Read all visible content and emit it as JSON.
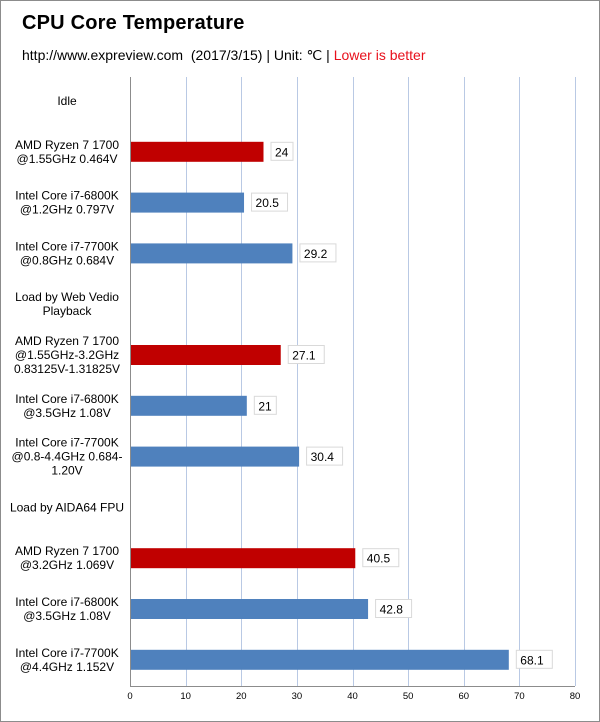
{
  "chart_data": {
    "type": "bar",
    "orientation": "horizontal",
    "title": "CPU Core Temperature",
    "subtitle": {
      "source": "http://www.expreview.com  (2017/3/15) | Unit: ℃ | ",
      "note": "Lower is better"
    },
    "xlabel": "",
    "ylabel": "",
    "xlim": [
      0,
      80
    ],
    "xticks": [
      0,
      10,
      20,
      30,
      40,
      50,
      60,
      70,
      80
    ],
    "grid": true,
    "legend": "none",
    "colors": {
      "amd": "#c00000",
      "intel": "#4f81bd",
      "grid": "#b9c9e4",
      "axis": "#8c8c8c",
      "highlight_text": "#e8101c"
    },
    "rows": [
      {
        "label": [
          "Idle"
        ],
        "header": true
      },
      {
        "label": [
          "AMD Ryzen 7 1700",
          "@1.55GHz 0.464V"
        ],
        "value": 24,
        "value_label": "24",
        "brand": "amd"
      },
      {
        "label": [
          "Intel Core i7-6800K",
          "@1.2GHz 0.797V"
        ],
        "value": 20.5,
        "value_label": "20.5",
        "brand": "intel"
      },
      {
        "label": [
          "Intel Core i7-7700K",
          "@0.8GHz 0.684V"
        ],
        "value": 29.2,
        "value_label": "29.2",
        "brand": "intel"
      },
      {
        "label": [
          "Load by Web Vedio",
          "Playback"
        ],
        "header": true
      },
      {
        "label": [
          "AMD Ryzen 7 1700",
          "@1.55GHz-3.2GHz",
          "0.83125V-1.31825V"
        ],
        "value": 27.1,
        "value_label": "27.1",
        "brand": "amd"
      },
      {
        "label": [
          "Intel Core i7-6800K",
          "@3.5GHz 1.08V"
        ],
        "value": 21,
        "value_label": "21",
        "brand": "intel"
      },
      {
        "label": [
          "Intel Core i7-7700K",
          "@0.8-4.4GHz 0.684-",
          "1.20V"
        ],
        "value": 30.4,
        "value_label": "30.4",
        "brand": "intel"
      },
      {
        "label": [
          "Load by AIDA64 FPU"
        ],
        "header": true
      },
      {
        "label": [
          "AMD Ryzen 7 1700",
          "@3.2GHz 1.069V"
        ],
        "value": 40.5,
        "value_label": "40.5",
        "brand": "amd"
      },
      {
        "label": [
          "Intel Core i7-6800K",
          "@3.5GHz 1.08V"
        ],
        "value": 42.8,
        "value_label": "42.8",
        "brand": "intel"
      },
      {
        "label": [
          "Intel Core i7-7700K",
          "@4.4GHz 1.152V"
        ],
        "value": 68.1,
        "value_label": "68.1",
        "brand": "intel"
      }
    ]
  }
}
